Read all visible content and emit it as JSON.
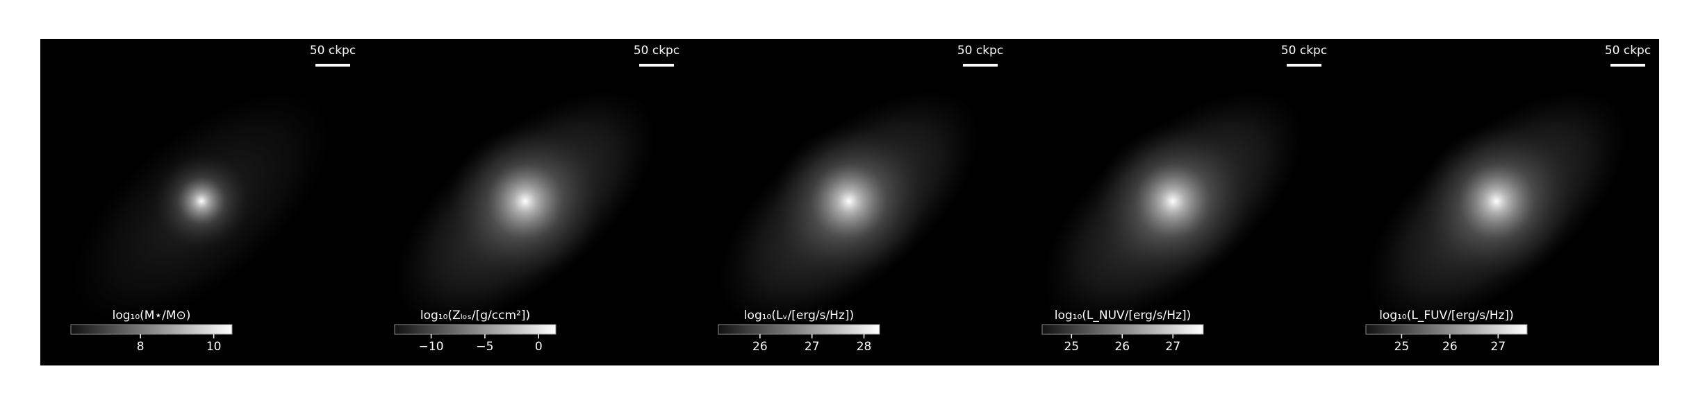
{
  "chart_data": [
    {
      "type": "image",
      "scale_bar_label": "50 ckpc",
      "colorbar": {
        "label": "log₁₀(M⋆/M⊙)",
        "clim": [
          6.1,
          10.5
        ],
        "ticks": [
          8,
          10
        ]
      }
    },
    {
      "type": "image",
      "scale_bar_label": "50 ckpc",
      "colorbar": {
        "label": "log₁₀(Zₗₒₛ/[g/ccm²])",
        "clim": [
          -13.4,
          1.6
        ],
        "ticks": [
          {
            "value": -10,
            "label": "−10"
          },
          {
            "value": -5,
            "label": "−5"
          },
          0
        ]
      }
    },
    {
      "type": "image",
      "scale_bar_label": "50 ckpc",
      "colorbar": {
        "label": "log₁₀(Lᵥ/[erg/s/Hz])",
        "clim": [
          25.2,
          28.3
        ],
        "ticks": [
          26,
          27,
          28
        ]
      }
    },
    {
      "type": "image",
      "scale_bar_label": "50 ckpc",
      "colorbar": {
        "label": "log₁₀(L_NUV/[erg/s/Hz])",
        "clim": [
          24.42,
          27.6
        ],
        "ticks": [
          25,
          26,
          27
        ]
      }
    },
    {
      "type": "image",
      "scale_bar_label": "50 ckpc",
      "colorbar": {
        "label": "log₁₀(L_FUV/[erg/s/Hz])",
        "clim": [
          24.26,
          27.6
        ],
        "ticks": [
          25,
          26,
          27
        ]
      }
    }
  ]
}
